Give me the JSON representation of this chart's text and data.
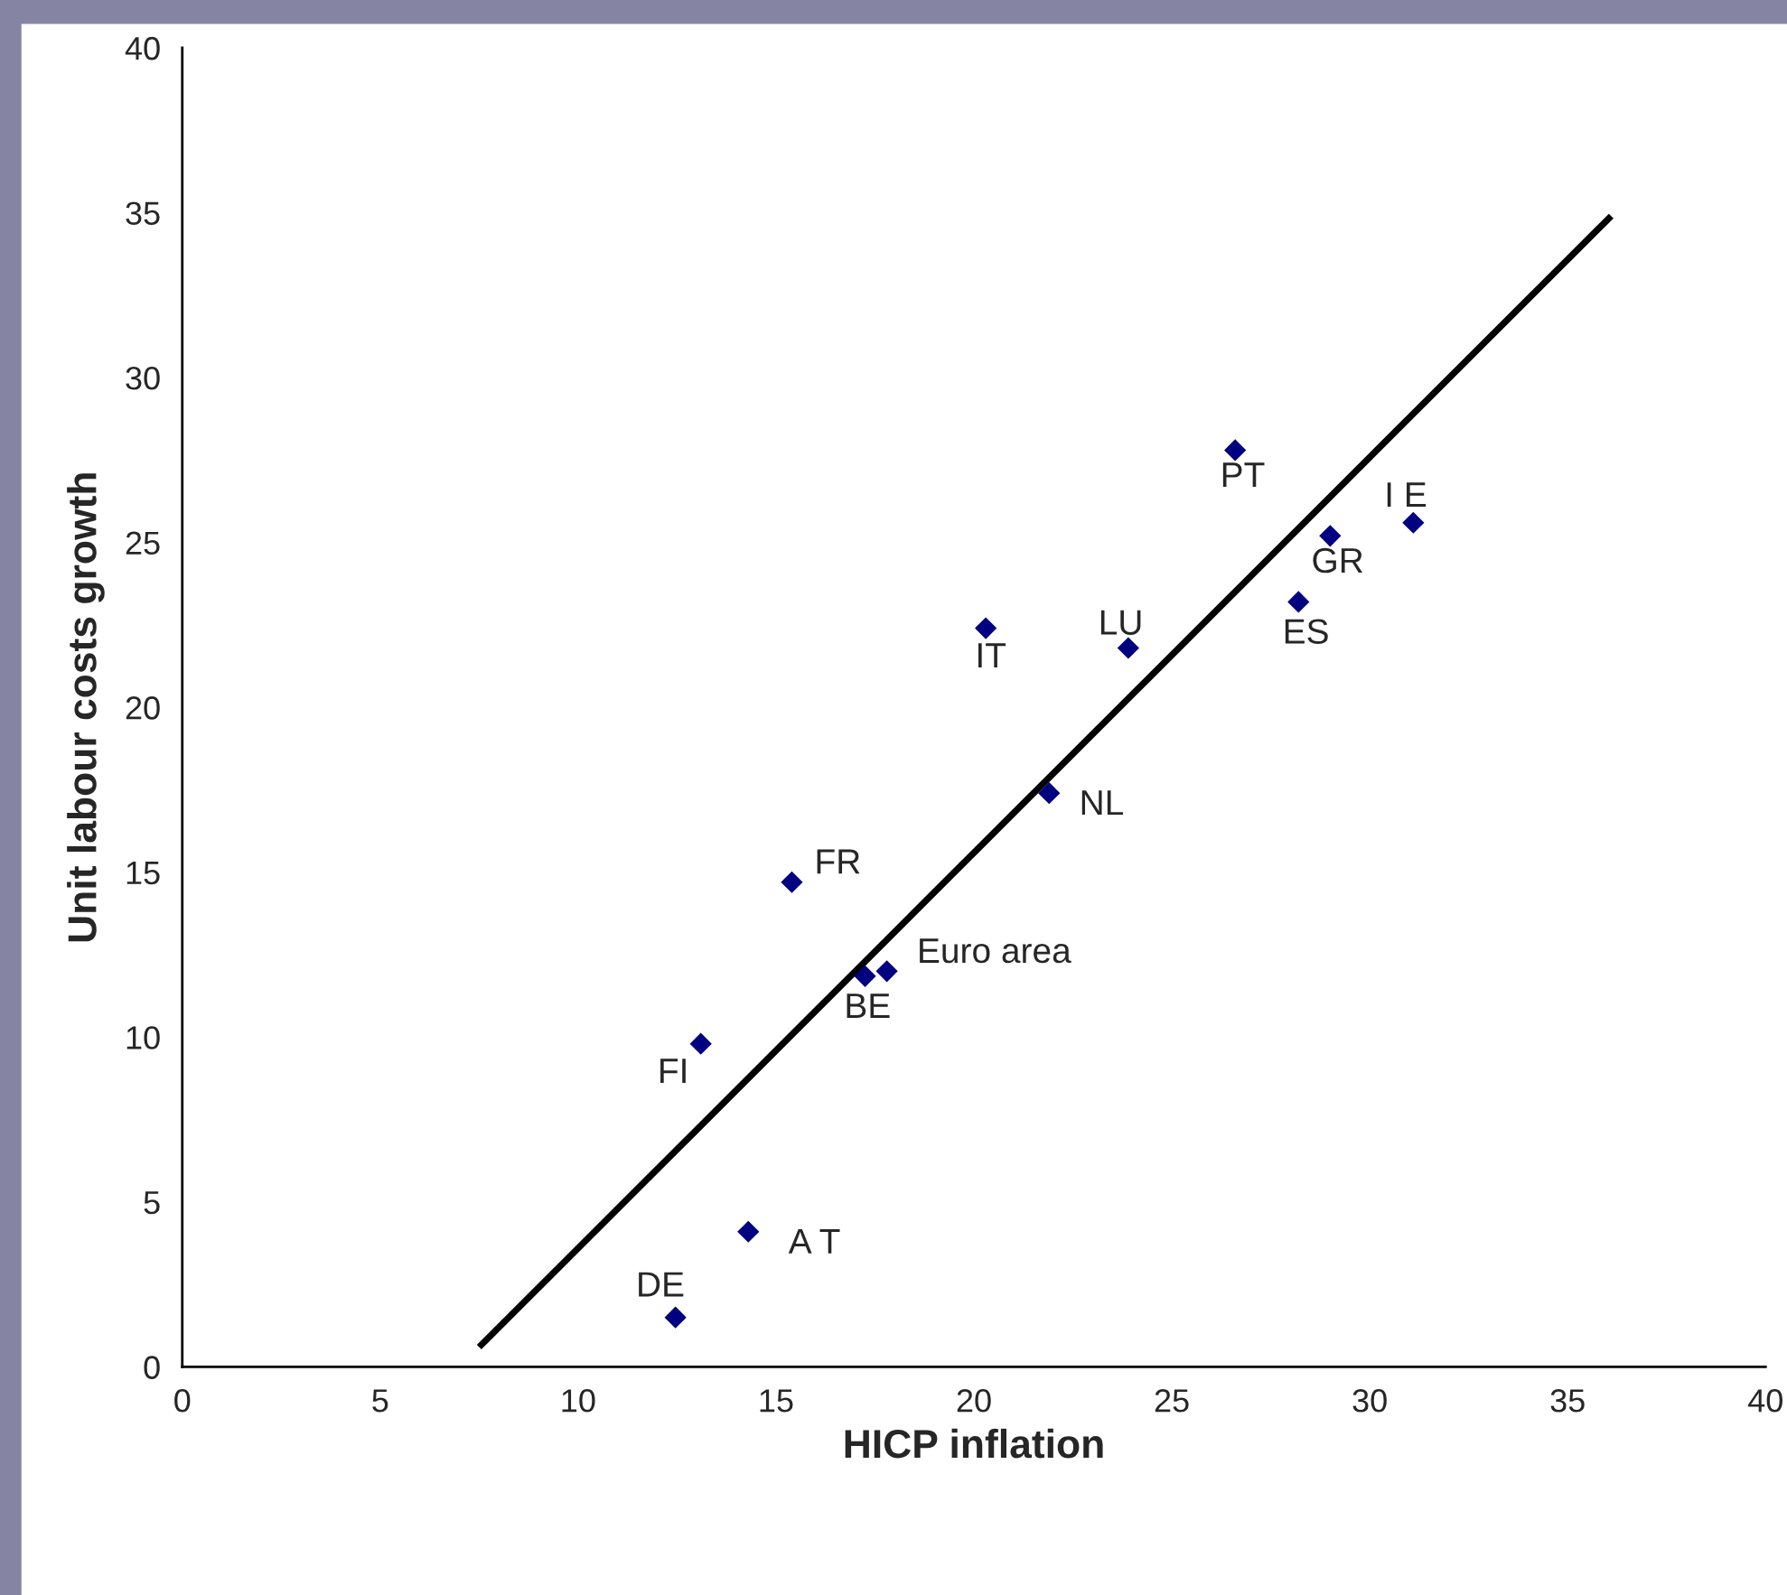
{
  "chart_data": {
    "type": "scatter",
    "xlabel": "HICP inflation",
    "ylabel": "Unit labour costs growth",
    "xlim": [
      0,
      40
    ],
    "ylim": [
      0,
      40
    ],
    "xticks": [
      0,
      5,
      10,
      15,
      20,
      25,
      30,
      35,
      40
    ],
    "yticks": [
      0,
      5,
      10,
      15,
      20,
      25,
      30,
      35,
      40
    ],
    "grid": false,
    "legend": false,
    "marker": "diamond",
    "series": [
      {
        "color": "#000080",
        "x": [
          12.46,
          14.3,
          13.1,
          15.4,
          17.25,
          17.8,
          20.3,
          21.9,
          23.9,
          26.6,
          28.2,
          29.0,
          31.1
        ],
        "values": [
          1.5,
          4.1,
          9.8,
          14.7,
          11.85,
          12.0,
          22.4,
          17.4,
          21.8,
          27.8,
          23.2,
          25.2,
          25.6
        ]
      },
      {
        "type": "line",
        "color": "#000000",
        "marker": "none",
        "line_style": "solid",
        "x": [
          7.5,
          36.1
        ],
        "values": [
          0.6,
          34.9
        ]
      }
    ],
    "annotations": [
      {
        "text": "DE",
        "x": 12.46,
        "y": 1.5
      },
      {
        "text": "A T",
        "x": 14.3,
        "y": 4.1
      },
      {
        "text": "FI",
        "x": 13.1,
        "y": 9.8
      },
      {
        "text": "FR",
        "x": 15.4,
        "y": 14.7
      },
      {
        "text": "BE",
        "x": 17.25,
        "y": 11.85
      },
      {
        "text": "Euro area",
        "x": 17.8,
        "y": 12.0
      },
      {
        "text": "IT",
        "x": 20.3,
        "y": 22.4
      },
      {
        "text": "NL",
        "x": 21.9,
        "y": 17.4
      },
      {
        "text": "LU",
        "x": 23.9,
        "y": 21.8
      },
      {
        "text": "PT",
        "x": 26.6,
        "y": 27.8
      },
      {
        "text": "ES",
        "x": 28.2,
        "y": 23.2
      },
      {
        "text": "GR",
        "x": 29.0,
        "y": 25.2
      },
      {
        "text": "I E",
        "x": 31.1,
        "y": 25.6
      }
    ]
  }
}
